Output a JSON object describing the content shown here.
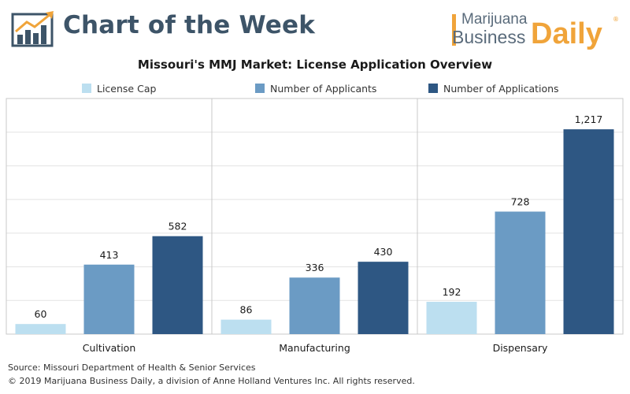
{
  "header": {
    "title": "Chart of the Week",
    "icon": "bar-chart-trend-icon",
    "brand": {
      "line1": "Marijuana",
      "line2": "Business",
      "accent": "Daily",
      "registered": "®",
      "accent_color": "#f0a43a"
    }
  },
  "chart_data": {
    "type": "bar",
    "title": "Missouri's MMJ Market: License Application Overview",
    "categories": [
      "Cultivation",
      "Manufacturing",
      "Dispensary"
    ],
    "series": [
      {
        "name": "License Cap",
        "color": "#bcdff0",
        "values": [
          60,
          86,
          192
        ],
        "labels": [
          "60",
          "86",
          "192"
        ]
      },
      {
        "name": "Number of Applicants",
        "color": "#6b9bc4",
        "values": [
          413,
          336,
          728
        ],
        "labels": [
          "413",
          "336",
          "728"
        ]
      },
      {
        "name": "Number of Applications",
        "color": "#2e5783",
        "values": [
          582,
          430,
          1217
        ],
        "labels": [
          "582",
          "430",
          "1,217"
        ]
      }
    ],
    "ylim": [
      0,
      1400
    ],
    "grid": true,
    "legend_position": "top",
    "xlabel": "",
    "ylabel": ""
  },
  "footer": {
    "source": "Source: Missouri Department of Health & Senior Services",
    "copyright": "© 2019 Marijuana Business Daily, a division of Anne Holland Ventures Inc. All rights reserved."
  }
}
